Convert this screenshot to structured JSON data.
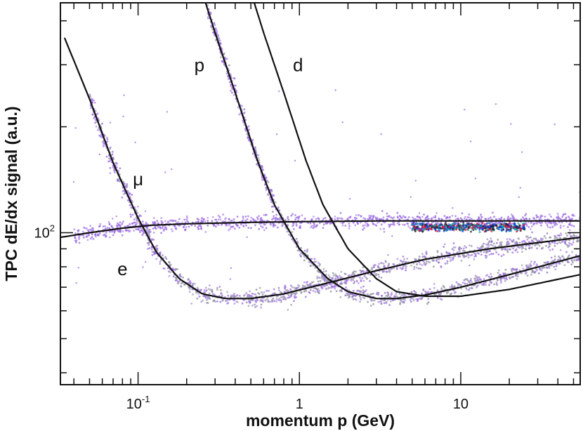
{
  "chart_data": {
    "type": "scatter",
    "xlabel": "momentum p (GeV)",
    "ylabel": "TPC dE/dx signal (a.u.)",
    "x_scale": "log",
    "y_scale": "log",
    "xlim": [
      0.033,
      55
    ],
    "ylim": [
      37,
      450
    ],
    "x_ticks": [
      {
        "value": 0.1,
        "label": "10",
        "sup": "-1"
      },
      {
        "value": 1,
        "label": "1",
        "sup": ""
      },
      {
        "value": 10,
        "label": "10",
        "sup": ""
      }
    ],
    "y_ticks": [
      {
        "value": 100,
        "label": "10",
        "sup": "2"
      }
    ],
    "grid": false,
    "legend": "none",
    "curves": [
      {
        "name": "e",
        "points": [
          [
            0.033,
            97
          ],
          [
            0.05,
            100
          ],
          [
            0.08,
            103
          ],
          [
            0.12,
            105
          ],
          [
            0.2,
            106
          ],
          [
            0.5,
            107
          ],
          [
            1,
            107.5
          ],
          [
            3,
            108
          ],
          [
            10,
            108
          ],
          [
            55,
            108
          ]
        ]
      },
      {
        "name": "μ",
        "points": [
          [
            0.035,
            358
          ],
          [
            0.05,
            240
          ],
          [
            0.07,
            158
          ],
          [
            0.1,
            110
          ],
          [
            0.13,
            88
          ],
          [
            0.18,
            74
          ],
          [
            0.25,
            67
          ],
          [
            0.35,
            65
          ],
          [
            0.5,
            65
          ],
          [
            0.8,
            67
          ],
          [
            1.5,
            72
          ],
          [
            3,
            78
          ],
          [
            6,
            84
          ],
          [
            15,
            90
          ],
          [
            55,
            97
          ]
        ]
      },
      {
        "name": "p",
        "points": [
          [
            0.262,
            450
          ],
          [
            0.3,
            370
          ],
          [
            0.4,
            250
          ],
          [
            0.55,
            160
          ],
          [
            0.7,
            120
          ],
          [
            1,
            90
          ],
          [
            1.5,
            74
          ],
          [
            2,
            68
          ],
          [
            3,
            65
          ],
          [
            4,
            65
          ],
          [
            6,
            66.5
          ],
          [
            10,
            70
          ],
          [
            20,
            76
          ],
          [
            55,
            86
          ]
        ]
      },
      {
        "name": "d",
        "points": [
          [
            0.525,
            450
          ],
          [
            0.6,
            370
          ],
          [
            0.8,
            250
          ],
          [
            1.1,
            160
          ],
          [
            1.4,
            120
          ],
          [
            2,
            90
          ],
          [
            3,
            74
          ],
          [
            4,
            68
          ],
          [
            6,
            66
          ],
          [
            10,
            66
          ],
          [
            20,
            69
          ],
          [
            55,
            76
          ]
        ]
      }
    ],
    "annotations": [
      {
        "text": "p",
        "x": 0.24,
        "y": 300
      },
      {
        "text": "d",
        "x": 0.98,
        "y": 300
      },
      {
        "text": "μ",
        "x": 0.1,
        "y": 142
      },
      {
        "text": "e",
        "x": 0.08,
        "y": 79
      }
    ],
    "point_colors": [
      "#9a6ae0",
      "#b08ae8",
      "#8c8c9c",
      "#a0a0b0",
      "#e01040",
      "#1040e0",
      "#10a0a0",
      "#202020"
    ]
  }
}
